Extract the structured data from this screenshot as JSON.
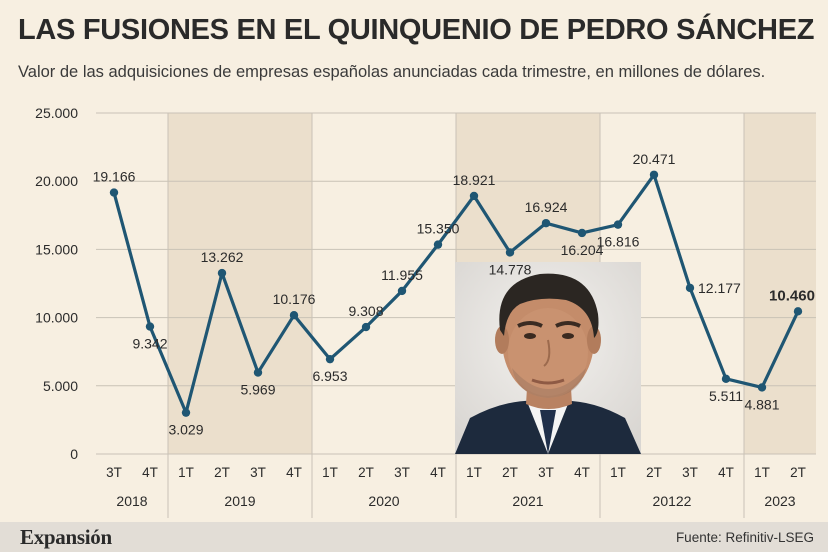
{
  "header": {
    "title": "LAS FUSIONES EN EL QUINQUENIO DE PEDRO SÁNCHEZ",
    "subtitle": "Valor de las adquisiciones de empresas españolas anunciadas cada trimestre, en millones de dólares."
  },
  "footer": {
    "brand": "Expansión",
    "source": "Fuente: Refinitiv-LSEG"
  },
  "colors": {
    "line": "#1f5673",
    "band": "#ebdfcc",
    "grid": "#c9c2b6"
  },
  "chart_data": {
    "type": "line",
    "title": "LAS FUSIONES EN EL QUINQUENIO DE PEDRO SÁNCHEZ",
    "xlabel": "",
    "ylabel": "",
    "ylim": [
      0,
      25000
    ],
    "yticks": [
      0,
      5000,
      10000,
      15000,
      20000,
      25000
    ],
    "ytick_labels": [
      "0",
      "5.000",
      "10.000",
      "15.000",
      "20.000",
      "25.000"
    ],
    "grid": true,
    "categories": [
      "3T",
      "4T",
      "1T",
      "2T",
      "3T",
      "4T",
      "1T",
      "2T",
      "3T",
      "4T",
      "1T",
      "2T",
      "3T",
      "4T",
      "1T",
      "2T",
      "3T",
      "4T",
      "1T",
      "2T"
    ],
    "groups": [
      {
        "label": "2018",
        "count": 2
      },
      {
        "label": "2019",
        "count": 4
      },
      {
        "label": "2020",
        "count": 4
      },
      {
        "label": "2021",
        "count": 4
      },
      {
        "label": "20122",
        "count": 4
      },
      {
        "label": "2023",
        "count": 2
      }
    ],
    "values": [
      19166,
      9342,
      3029,
      13262,
      5969,
      10176,
      6953,
      9308,
      11955,
      15350,
      18921,
      14778,
      16924,
      16204,
      16816,
      20471,
      12177,
      5511,
      4881,
      10460
    ],
    "value_labels": [
      "19.166",
      "9.342",
      "3.029",
      "13.262",
      "5.969",
      "10.176",
      "6.953",
      "9.308",
      "11.955",
      "15.350",
      "18.921",
      "14.778",
      "16.924",
      "16.204",
      "16.816",
      "20.471",
      "12.177",
      "5.511",
      "4.881",
      "10.460"
    ],
    "label_positions": [
      "above",
      "below",
      "below",
      "above",
      "below",
      "above",
      "below",
      "above",
      "above",
      "above",
      "above",
      "below",
      "above",
      "below",
      "below",
      "above",
      "right",
      "below",
      "below",
      "above"
    ],
    "highlight_last": true
  },
  "photo": {
    "icon": "portrait-photo-icon"
  }
}
